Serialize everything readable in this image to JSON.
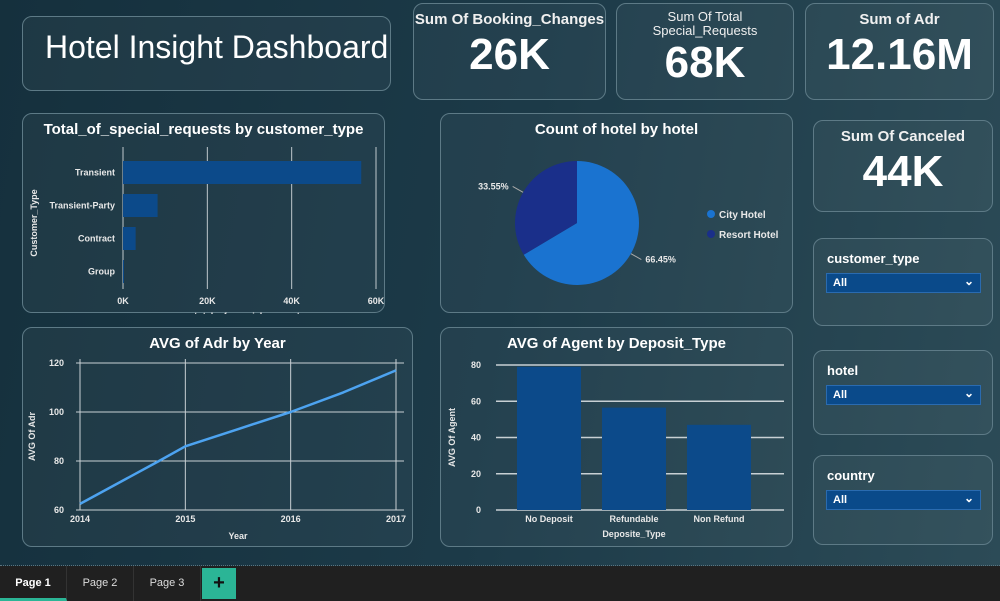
{
  "header": {
    "title": "Hotel Insight Dashboard"
  },
  "kpis": [
    {
      "label": "Sum Of Booking_Changes",
      "value": "26K"
    },
    {
      "label": "Sum Of Total Special_Requests",
      "value": "68K"
    },
    {
      "label": "Sum of Adr",
      "value": "12.16M"
    },
    {
      "label": "Sum Of Canceled",
      "value": "44K"
    }
  ],
  "slicers": [
    {
      "label": "customer_type",
      "value": "All"
    },
    {
      "label": "hotel",
      "value": "All"
    },
    {
      "label": "country",
      "value": "All"
    }
  ],
  "tabs": [
    "Page 1",
    "Page 2",
    "Page 3"
  ],
  "add_tab": "+",
  "chart_data": [
    {
      "type": "bar",
      "orientation": "horizontal",
      "title": "Total_of_special_requests by customer_type",
      "xlabel": "total_of_special_requests",
      "ylabel": "Customer_Type",
      "categories": [
        "Transient",
        "Transient-Party",
        "Contract",
        "Group"
      ],
      "values": [
        56500,
        8200,
        3000,
        200
      ],
      "xlim": [
        0,
        60000
      ],
      "xticks": [
        "0K",
        "20K",
        "40K",
        "60K"
      ],
      "color": "#0c4a8a"
    },
    {
      "type": "pie",
      "title": "Count of hotel by hotel",
      "series": [
        {
          "name": "City Hotel",
          "value": 66.45,
          "label": "66.45%",
          "color": "#1a73d0"
        },
        {
          "name": "Resort Hotel",
          "value": 33.55,
          "label": "33.55%",
          "color": "#1a2f8a"
        }
      ],
      "legend": "right"
    },
    {
      "type": "line",
      "title": "AVG of Adr by Year",
      "xlabel": "Year",
      "ylabel": "AVG Of Adr",
      "x": [
        2014,
        2014.75,
        2015,
        2015.5,
        2016,
        2016.5,
        2017
      ],
      "y": [
        62.5,
        80,
        86,
        93,
        100,
        108,
        117
      ],
      "xticks": [
        "2014",
        "2015",
        "2016",
        "2017"
      ],
      "ylim": [
        60,
        120
      ],
      "yticks": [
        "60",
        "80",
        "100",
        "120"
      ],
      "color": "#4da3f0",
      "grid": true
    },
    {
      "type": "bar",
      "title": "AVG of Agent by Deposit_Type",
      "xlabel": "Deposite_Type",
      "ylabel": "AVG Of Agent",
      "categories": [
        "No Deposit",
        "Refundable",
        "Non Refund"
      ],
      "values": [
        79,
        56.5,
        47
      ],
      "ylim": [
        0,
        80
      ],
      "yticks": [
        "0",
        "20",
        "40",
        "60",
        "80"
      ],
      "color": "#0c4a8a"
    }
  ]
}
